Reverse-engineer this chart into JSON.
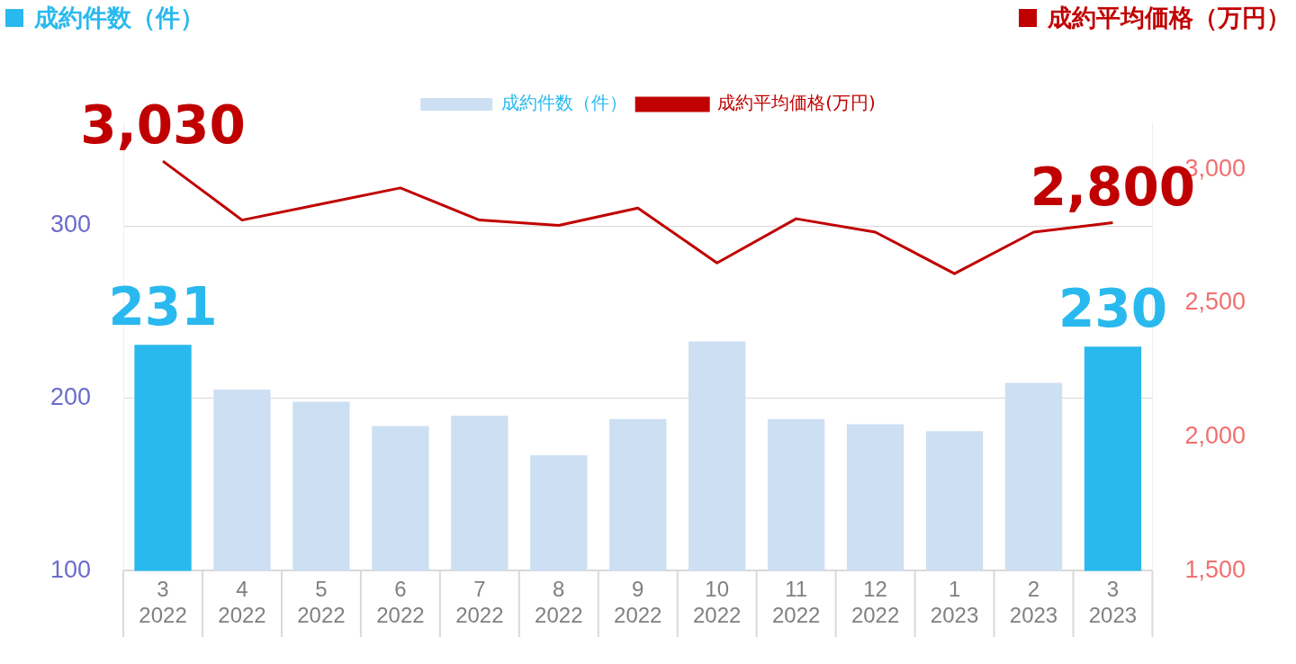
{
  "chart_data": {
    "type": "bar",
    "ylabel": "成約件数（件）",
    "y2label": "成約平均価格（万円）",
    "categories": [
      "3\n2022",
      "4\n2022",
      "5\n2022",
      "6\n2022",
      "7\n2022",
      "8\n2022",
      "9\n2022",
      "10\n2022",
      "11\n2022",
      "12\n2022",
      "1\n2023",
      "2\n2023",
      "3\n2023"
    ],
    "series": [
      {
        "name": "成約件数（件）",
        "color": "#cddff3",
        "colors": [
          "#29b9ee",
          "#cddff3",
          "#cddff3",
          "#cddff3",
          "#cddff3",
          "#cddff3",
          "#cddff3",
          "#cddff3",
          "#cddff3",
          "#cddff3",
          "#cddff3",
          "#cddff3",
          "#29b9ee"
        ],
        "values": [
          231,
          205,
          198,
          184,
          190,
          167,
          188,
          233,
          188,
          185,
          181,
          209,
          230
        ],
        "value_labels": [
          "231",
          null,
          null,
          null,
          null,
          null,
          null,
          null,
          null,
          null,
          null,
          null,
          "230"
        ]
      },
      {
        "name": "成約平均価格(万円)",
        "type": "line",
        "axis": "y2",
        "color": "#c00000",
        "values": [
          3030,
          2810,
          2870,
          2930,
          2810,
          2790,
          2855,
          2650,
          2815,
          2765,
          2610,
          2765,
          2800
        ],
        "value_labels": [
          "3,030",
          null,
          null,
          null,
          null,
          null,
          null,
          null,
          null,
          null,
          null,
          null,
          "2,800"
        ]
      }
    ],
    "ylim": [
      100,
      360
    ],
    "yticks": [
      100,
      200,
      300
    ],
    "y2lim": [
      1500,
      3175
    ],
    "y2ticks": [
      {
        "value": 1500,
        "label": "1,500"
      },
      {
        "value": 2000,
        "label": "2,000"
      },
      {
        "value": 2500,
        "label": "2,500"
      },
      {
        "value": 3000,
        "label": "3,000"
      }
    ],
    "grid": "y",
    "legend": "top",
    "marker": "none",
    "line_style": "solid"
  }
}
